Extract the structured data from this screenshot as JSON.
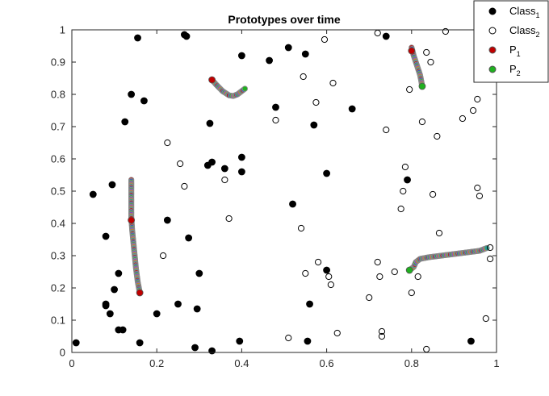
{
  "chart_data": {
    "type": "scatter",
    "title": "Prototypes over time",
    "xlabel": "",
    "ylabel": "",
    "xlim": [
      0,
      1
    ],
    "ylim": [
      0,
      1
    ],
    "xticks": [
      "0",
      "0.2",
      "0.4",
      "0.6",
      "0.8",
      "1"
    ],
    "yticks": [
      "0",
      "0.1",
      "0.2",
      "0.3",
      "0.4",
      "0.5",
      "0.6",
      "0.7",
      "0.8",
      "0.9",
      "1"
    ],
    "grid": false,
    "legend_position": "top-right",
    "legend": [
      {
        "base": "Class",
        "sub": "1",
        "marker": "filled",
        "color": "#000000"
      },
      {
        "base": "Class",
        "sub": "2",
        "marker": "open",
        "color": "#000000"
      },
      {
        "base": "P",
        "sub": "1",
        "marker": "filled",
        "color": "#c00000"
      },
      {
        "base": "P",
        "sub": "2",
        "marker": "filled",
        "color": "#20b020"
      }
    ],
    "series": [
      {
        "name": "Class1",
        "marker": "filled",
        "color": "#000000",
        "points": [
          [
            0.01,
            0.03
          ],
          [
            0.05,
            0.49
          ],
          [
            0.08,
            0.36
          ],
          [
            0.08,
            0.15
          ],
          [
            0.08,
            0.145
          ],
          [
            0.09,
            0.12
          ],
          [
            0.095,
            0.52
          ],
          [
            0.1,
            0.195
          ],
          [
            0.11,
            0.245
          ],
          [
            0.11,
            0.07
          ],
          [
            0.12,
            0.07
          ],
          [
            0.125,
            0.715
          ],
          [
            0.14,
            0.8
          ],
          [
            0.155,
            0.975
          ],
          [
            0.16,
            0.03
          ],
          [
            0.17,
            0.78
          ],
          [
            0.2,
            0.12
          ],
          [
            0.225,
            0.41
          ],
          [
            0.25,
            0.15
          ],
          [
            0.265,
            0.985
          ],
          [
            0.27,
            0.98
          ],
          [
            0.275,
            0.355
          ],
          [
            0.29,
            0.015
          ],
          [
            0.295,
            0.135
          ],
          [
            0.3,
            0.245
          ],
          [
            0.32,
            0.58
          ],
          [
            0.325,
            0.71
          ],
          [
            0.33,
            0.59
          ],
          [
            0.33,
            0.005
          ],
          [
            0.36,
            0.57
          ],
          [
            0.395,
            0.035
          ],
          [
            0.4,
            0.56
          ],
          [
            0.4,
            0.605
          ],
          [
            0.4,
            0.92
          ],
          [
            0.465,
            0.905
          ],
          [
            0.48,
            0.76
          ],
          [
            0.51,
            0.945
          ],
          [
            0.52,
            0.46
          ],
          [
            0.55,
            0.925
          ],
          [
            0.555,
            0.035
          ],
          [
            0.56,
            0.15
          ],
          [
            0.57,
            0.705
          ],
          [
            0.6,
            0.555
          ],
          [
            0.6,
            0.255
          ],
          [
            0.66,
            0.755
          ],
          [
            0.74,
            0.98
          ],
          [
            0.79,
            0.535
          ],
          [
            0.94,
            0.035
          ]
        ]
      },
      {
        "name": "Class2",
        "marker": "open",
        "color": "#000000",
        "points": [
          [
            0.215,
            0.3
          ],
          [
            0.225,
            0.65
          ],
          [
            0.255,
            0.585
          ],
          [
            0.265,
            0.515
          ],
          [
            0.36,
            0.535
          ],
          [
            0.37,
            0.415
          ],
          [
            0.48,
            0.72
          ],
          [
            0.51,
            0.045
          ],
          [
            0.54,
            0.385
          ],
          [
            0.545,
            0.855
          ],
          [
            0.55,
            0.245
          ],
          [
            0.575,
            0.775
          ],
          [
            0.58,
            0.28
          ],
          [
            0.595,
            0.97
          ],
          [
            0.605,
            0.235
          ],
          [
            0.61,
            0.21
          ],
          [
            0.615,
            0.835
          ],
          [
            0.625,
            0.06
          ],
          [
            0.7,
            0.17
          ],
          [
            0.72,
            0.99
          ],
          [
            0.72,
            0.28
          ],
          [
            0.725,
            0.235
          ],
          [
            0.73,
            0.065
          ],
          [
            0.73,
            0.05
          ],
          [
            0.74,
            0.69
          ],
          [
            0.76,
            0.25
          ],
          [
            0.775,
            0.445
          ],
          [
            0.78,
            0.5
          ],
          [
            0.785,
            0.575
          ],
          [
            0.795,
            0.815
          ],
          [
            0.8,
            0.185
          ],
          [
            0.815,
            0.235
          ],
          [
            0.825,
            0.715
          ],
          [
            0.835,
            0.93
          ],
          [
            0.835,
            0.01
          ],
          [
            0.845,
            0.9
          ],
          [
            0.85,
            0.49
          ],
          [
            0.86,
            0.67
          ],
          [
            0.865,
            0.37
          ],
          [
            0.88,
            0.995
          ],
          [
            0.92,
            0.725
          ],
          [
            0.945,
            0.75
          ],
          [
            0.955,
            0.785
          ],
          [
            0.955,
            0.51
          ],
          [
            0.96,
            0.485
          ],
          [
            0.975,
            0.105
          ],
          [
            0.985,
            0.29
          ],
          [
            0.985,
            0.325
          ]
        ]
      },
      {
        "name": "P1",
        "marker": "filled",
        "color": "#c00000",
        "points": [
          [
            0.33,
            0.845
          ],
          [
            0.14,
            0.41
          ],
          [
            0.16,
            0.185
          ],
          [
            0.8,
            0.935
          ]
        ]
      },
      {
        "name": "P2",
        "marker": "filled",
        "color": "#20b020",
        "points": [
          [
            0.825,
            0.825
          ],
          [
            0.795,
            0.255
          ]
        ]
      }
    ],
    "trajectories": [
      {
        "points": [
          [
            0.33,
            0.845
          ],
          [
            0.34,
            0.83
          ],
          [
            0.355,
            0.81
          ],
          [
            0.37,
            0.797
          ],
          [
            0.38,
            0.795
          ],
          [
            0.39,
            0.8
          ],
          [
            0.4,
            0.81
          ],
          [
            0.41,
            0.82
          ]
        ]
      },
      {
        "points": [
          [
            0.14,
            0.535
          ],
          [
            0.14,
            0.5
          ],
          [
            0.14,
            0.46
          ],
          [
            0.14,
            0.42
          ],
          [
            0.142,
            0.38
          ],
          [
            0.145,
            0.34
          ],
          [
            0.148,
            0.3
          ],
          [
            0.151,
            0.26
          ],
          [
            0.155,
            0.22
          ],
          [
            0.16,
            0.185
          ]
        ]
      },
      {
        "points": [
          [
            0.8,
            0.945
          ],
          [
            0.805,
            0.92
          ],
          [
            0.81,
            0.9
          ],
          [
            0.815,
            0.88
          ],
          [
            0.82,
            0.86
          ],
          [
            0.823,
            0.84
          ],
          [
            0.825,
            0.825
          ]
        ]
      },
      {
        "points": [
          [
            0.795,
            0.255
          ],
          [
            0.805,
            0.265
          ],
          [
            0.81,
            0.28
          ],
          [
            0.82,
            0.29
          ],
          [
            0.84,
            0.295
          ],
          [
            0.87,
            0.3
          ],
          [
            0.9,
            0.305
          ],
          [
            0.93,
            0.31
          ],
          [
            0.96,
            0.315
          ],
          [
            0.98,
            0.325
          ]
        ]
      }
    ]
  }
}
